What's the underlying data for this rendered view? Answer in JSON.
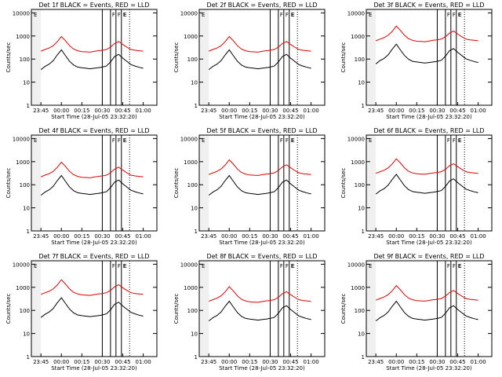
{
  "window": {
    "title": ""
  },
  "colors": {
    "events": "#000000",
    "lld": "#e00000",
    "background": "#ffffff",
    "axes": "#000000"
  },
  "chart_data": {
    "type": "line",
    "layout": "3x3 grid",
    "x_label": "Start Time (28-Jul-05 23:32:20)",
    "y_label": "Counts/sec",
    "y_scale": "log",
    "y_ticks": [
      "1",
      "10",
      "100",
      "1000",
      "10000"
    ],
    "x_ticks": [
      "23:45",
      "00:00",
      "00:15",
      "00:30",
      "00:45",
      "01:00"
    ],
    "grid": false,
    "legend": "in titles",
    "panels": [
      {
        "title": "Det 1f BLACK = Events, RED = LLD"
      },
      {
        "title": "Det 2f BLACK = Events, RED = LLD"
      },
      {
        "title": "Det 3f BLACK = Events, RED = LLD"
      },
      {
        "title": "Det 4f BLACK = Events, RED = LLD"
      },
      {
        "title": "Det 5f BLACK = Events, RED = LLD"
      },
      {
        "title": "Det 6f BLACK = Events, RED = LLD"
      },
      {
        "title": "Det 7f BLACK = Events, RED = LLD"
      },
      {
        "title": "Det 8f BLACK = Events, RED = LLD"
      },
      {
        "title": "Det 9f BLACK = Events, RED = LLD"
      }
    ],
    "time_markers": {
      "letters": [
        "E",
        "F",
        "F",
        "E",
        "E"
      ],
      "descriptions": [
        "shade",
        "line",
        "line",
        "line",
        "dotted-line"
      ]
    },
    "series": [
      {
        "name": "LLD",
        "color": "#e00000",
        "x": [
          "23:45",
          "23:48",
          "23:51",
          "23:54",
          "23:57",
          "00:00",
          "00:03",
          "00:06",
          "00:09",
          "00:12",
          "00:15",
          "00:18",
          "00:21",
          "00:24",
          "00:27",
          "00:30",
          "00:33",
          "00:36",
          "00:39",
          "00:42",
          "00:45",
          "00:48",
          "00:51",
          "00:54",
          "00:57",
          "01:00"
        ],
        "values": [
          220,
          260,
          300,
          380,
          560,
          950,
          620,
          380,
          270,
          230,
          210,
          205,
          200,
          215,
          230,
          240,
          260,
          330,
          470,
          580,
          430,
          330,
          260,
          240,
          230,
          220
        ]
      },
      {
        "name": "Events",
        "color": "#000000",
        "x": [
          "23:45",
          "23:48",
          "23:51",
          "23:54",
          "23:57",
          "00:00",
          "00:03",
          "00:06",
          "00:09",
          "00:12",
          "00:15",
          "00:18",
          "00:21",
          "00:24",
          "00:27",
          "00:30",
          "00:33",
          "00:36",
          "00:39",
          "00:42",
          "00:45",
          "00:48",
          "00:51",
          "00:54",
          "00:57",
          "01:00"
        ],
        "values": [
          35,
          48,
          60,
          85,
          150,
          250,
          140,
          80,
          55,
          45,
          42,
          40,
          38,
          40,
          42,
          45,
          50,
          75,
          130,
          160,
          110,
          80,
          58,
          50,
          44,
          40
        ]
      }
    ]
  }
}
